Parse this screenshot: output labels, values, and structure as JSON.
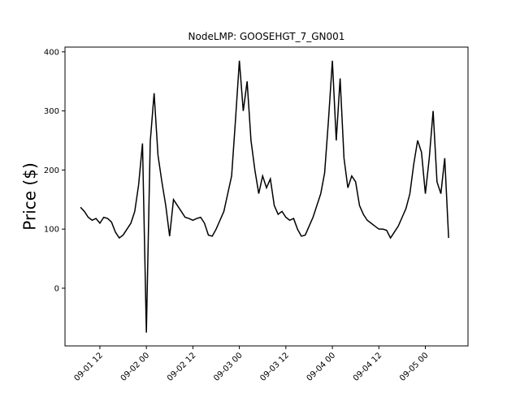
{
  "chart_data": {
    "type": "line",
    "title": "NodeLMP: GOOSEHGT_7_GN001",
    "y_label": "Price ($)",
    "color": "#000000",
    "x": [
      "09-01 07",
      "09-01 08",
      "09-01 09",
      "09-01 10",
      "09-01 11",
      "09-01 12",
      "09-01 13",
      "09-01 14",
      "09-01 15",
      "09-01 16",
      "09-01 17",
      "09-01 18",
      "09-01 19",
      "09-01 20",
      "09-01 21",
      "09-01 22",
      "09-01 23",
      "09-02 00",
      "09-02 01",
      "09-02 02",
      "09-02 03",
      "09-02 04",
      "09-02 05",
      "09-02 06",
      "09-02 07",
      "09-02 08",
      "09-02 09",
      "09-02 10",
      "09-02 11",
      "09-02 12",
      "09-02 13",
      "09-02 14",
      "09-02 15",
      "09-02 16",
      "09-02 17",
      "09-02 18",
      "09-02 19",
      "09-02 20",
      "09-02 21",
      "09-02 22",
      "09-02 23",
      "09-03 00",
      "09-03 01",
      "09-03 02",
      "09-03 03",
      "09-03 04",
      "09-03 05",
      "09-03 06",
      "09-03 07",
      "09-03 08",
      "09-03 09",
      "09-03 10",
      "09-03 11",
      "09-03 12",
      "09-03 13",
      "09-03 14",
      "09-03 15",
      "09-03 16",
      "09-03 17",
      "09-03 18",
      "09-03 19",
      "09-03 20",
      "09-03 21",
      "09-03 22",
      "09-03 23",
      "09-04 00",
      "09-04 01",
      "09-04 02",
      "09-04 03",
      "09-04 04",
      "09-04 05",
      "09-04 06",
      "09-04 07",
      "09-04 08",
      "09-04 09",
      "09-04 10",
      "09-04 11",
      "09-04 12",
      "09-04 13",
      "09-04 14",
      "09-04 15",
      "09-04 16",
      "09-04 17",
      "09-04 18",
      "09-04 19",
      "09-04 20",
      "09-04 21",
      "09-04 22",
      "09-04 23",
      "09-05 00",
      "09-05 01",
      "09-05 02",
      "09-05 03",
      "09-05 04",
      "09-05 05",
      "09-05 06"
    ],
    "values": [
      137,
      130,
      120,
      115,
      118,
      110,
      120,
      118,
      112,
      95,
      85,
      90,
      100,
      110,
      130,
      175,
      245,
      -75,
      248,
      330,
      225,
      180,
      140,
      88,
      150,
      140,
      130,
      120,
      118,
      115,
      118,
      120,
      110,
      90,
      88,
      100,
      115,
      130,
      160,
      190,
      285,
      385,
      300,
      350,
      250,
      200,
      160,
      190,
      170,
      185,
      140,
      125,
      130,
      120,
      115,
      118,
      100,
      88,
      90,
      105,
      120,
      140,
      160,
      195,
      285,
      385,
      250,
      355,
      220,
      170,
      190,
      180,
      140,
      125,
      115,
      110,
      105,
      100,
      100,
      98,
      85,
      95,
      105,
      120,
      135,
      160,
      210,
      250,
      230,
      160,
      220,
      300,
      180,
      160,
      220,
      85
    ],
    "xlim": [
      "09-01 03",
      "09-05 11"
    ],
    "xticks": [
      "09-01 12",
      "09-02 00",
      "09-02 12",
      "09-03 00",
      "09-03 12",
      "09-04 00",
      "09-04 12",
      "09-05 00"
    ],
    "ylim": [
      -97.6,
      408
    ],
    "yticks": [
      0,
      100,
      200,
      300,
      400
    ]
  }
}
